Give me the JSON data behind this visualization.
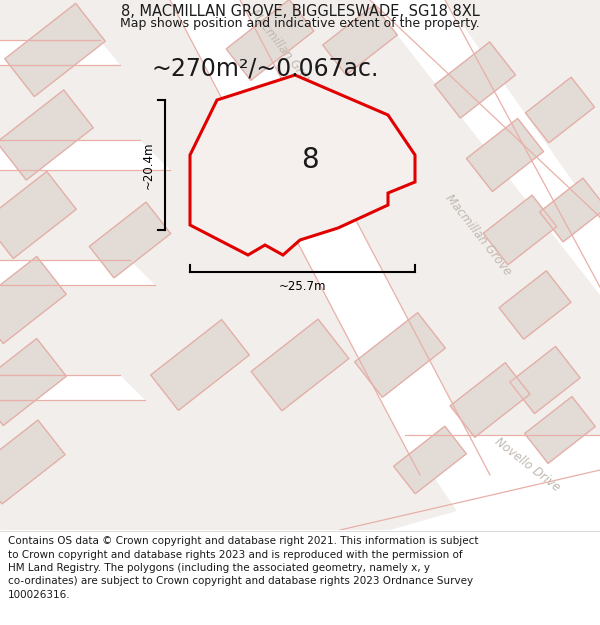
{
  "title": "8, MACMILLAN GROVE, BIGGLESWADE, SG18 8XL",
  "subtitle": "Map shows position and indicative extent of the property.",
  "area_text": "~270m²/~0.067ac.",
  "width_label": "~25.7m",
  "height_label": "~20.4m",
  "number_label": "8",
  "footer_lines": [
    "Contains OS data © Crown copyright and database right 2021. This information is subject",
    "to Crown copyright and database rights 2023 and is reproduced with the permission of",
    "HM Land Registry. The polygons (including the associated geometry, namely x, y",
    "co-ordinates) are subject to Crown copyright and database rights 2023 Ordnance Survey",
    "100026316."
  ],
  "map_bg": "#f2eeeb",
  "road_fill": "#ffffff",
  "block_fill": "#e2dbd6",
  "block_edge": "#c8c0ba",
  "pink": "#e8b0a8",
  "red": "#e00000",
  "prop_fill": "#f5f0ed",
  "dim_color": "#000000",
  "label_color": "#c0b8b0",
  "text_color": "#1a1a1a",
  "footer_bg": "#ffffff",
  "footer_color": "#1a1a1a",
  "title_fontsize": 10.5,
  "subtitle_fontsize": 9,
  "area_fontsize": 17,
  "number_fontsize": 20,
  "label_fontsize": 8.5,
  "footer_fontsize": 7.5,
  "dim_fontsize": 8.5
}
